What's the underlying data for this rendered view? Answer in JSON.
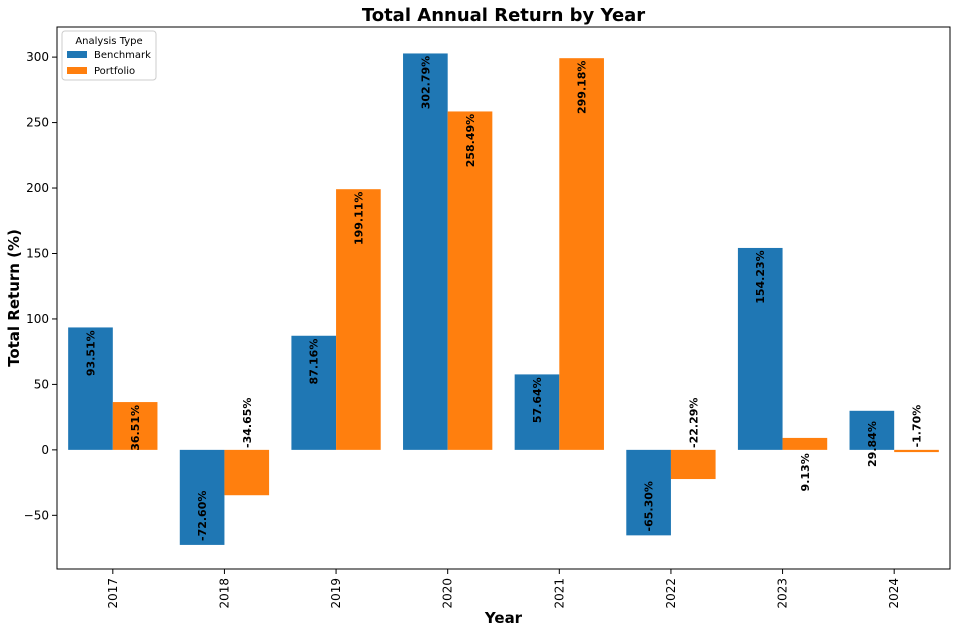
{
  "chart_data": {
    "type": "bar",
    "title": "Total Annual Return by Year",
    "xlabel": "Year",
    "ylabel": "Total Return (%)",
    "categories": [
      "2017",
      "2018",
      "2019",
      "2020",
      "2021",
      "2022",
      "2023",
      "2024"
    ],
    "series": [
      {
        "name": "Benchmark",
        "color": "#1f77b4",
        "values": [
          93.51,
          -72.6,
          87.16,
          302.79,
          57.64,
          -65.3,
          154.23,
          29.84
        ],
        "labels": [
          "93.51%",
          "-72.60%",
          "87.16%",
          "302.79%",
          "57.64%",
          "-65.30%",
          "154.23%",
          "29.84%"
        ]
      },
      {
        "name": "Portfolio",
        "color": "#ff7f0e",
        "values": [
          36.51,
          -34.65,
          199.11,
          258.49,
          299.18,
          -22.29,
          9.13,
          -1.7
        ],
        "labels": [
          "36.51%",
          "-34.65%",
          "199.11%",
          "258.49%",
          "299.18%",
          "-22.29%",
          "9.13%",
          "-1.70%"
        ]
      }
    ],
    "ylim": [
      -91,
      323
    ],
    "yticks": [
      -50,
      0,
      50,
      100,
      150,
      200,
      250,
      300
    ],
    "ytick_labels": [
      "−50",
      "0",
      "50",
      "100",
      "150",
      "200",
      "250",
      "300"
    ],
    "grid": false,
    "legend": {
      "title": "Analysis Type",
      "position": "upper left"
    }
  }
}
